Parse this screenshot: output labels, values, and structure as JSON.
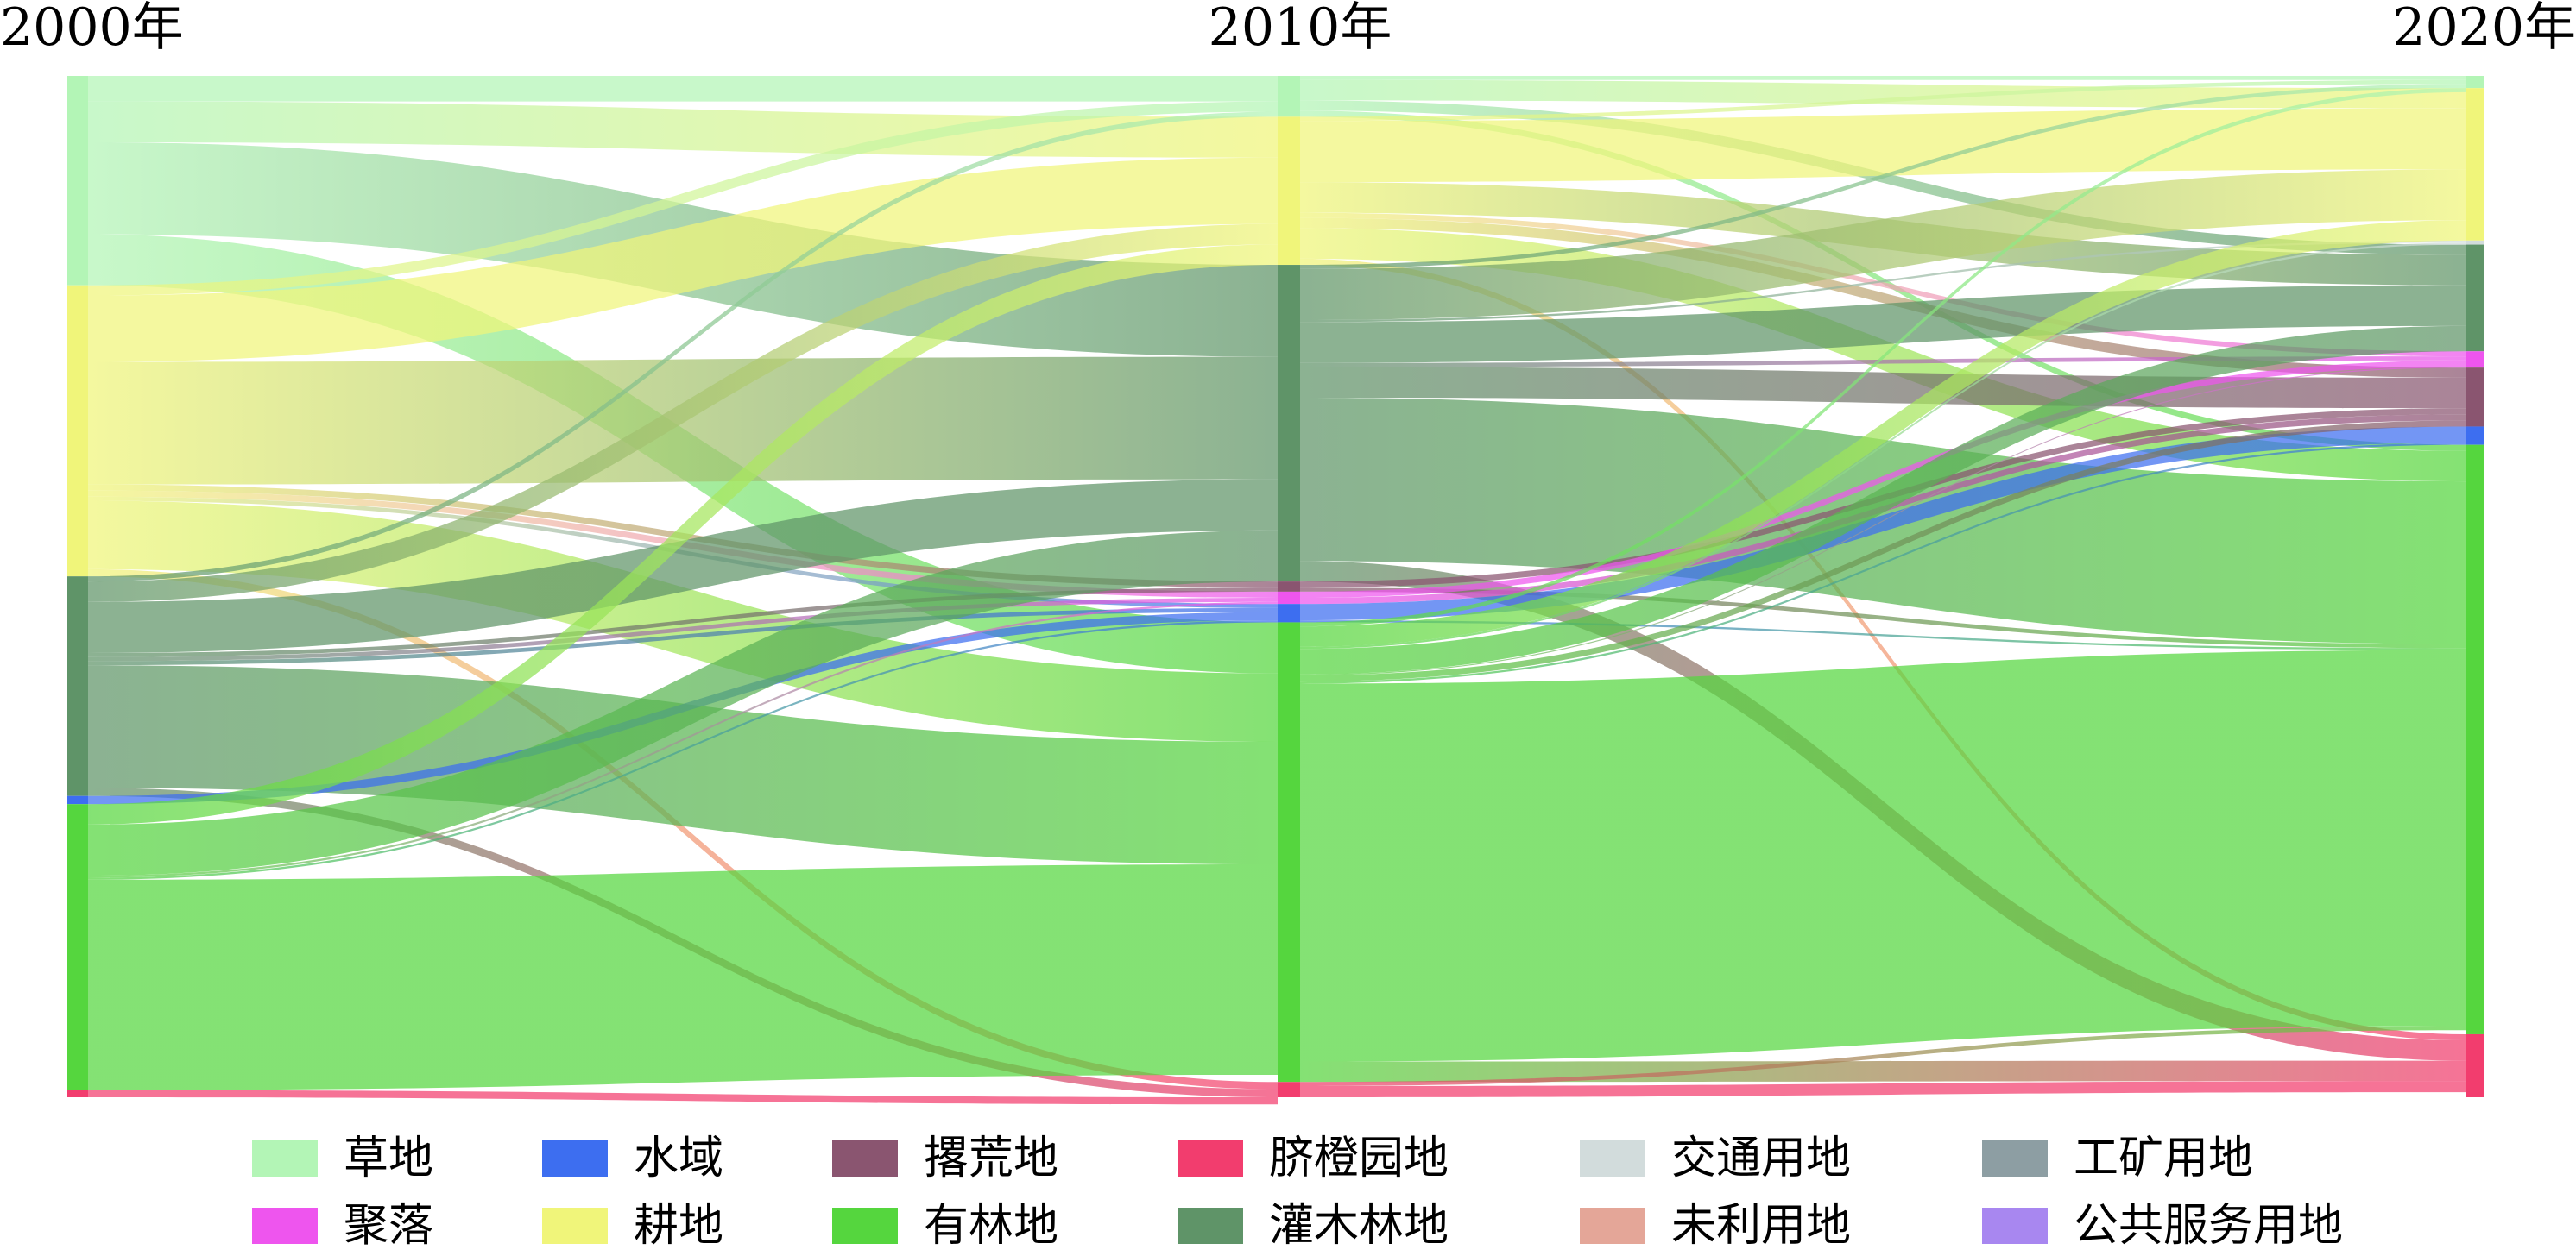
{
  "chart_data": {
    "type": "sankey",
    "years": [
      "2000年",
      "2010年",
      "2020年"
    ],
    "categories": [
      {
        "key": "grass",
        "name": "草地",
        "color": "#b3f5b6"
      },
      {
        "key": "water",
        "name": "水域",
        "color": "#3d6ef0"
      },
      {
        "key": "abandoned",
        "name": "撂荒地",
        "color": "#8a5570"
      },
      {
        "key": "orchard",
        "name": "脐橙园地",
        "color": "#f23d6e"
      },
      {
        "key": "traffic",
        "name": "交通用地",
        "color": "#d2dcdc"
      },
      {
        "key": "mining",
        "name": "工矿用地",
        "color": "#8d9ea3"
      },
      {
        "key": "settlement",
        "name": "聚落",
        "color": "#ee55ee"
      },
      {
        "key": "cropland",
        "name": "耕地",
        "color": "#f0f57a"
      },
      {
        "key": "forest",
        "name": "有林地",
        "color": "#55d63e"
      },
      {
        "key": "shrub",
        "name": "灌木林地",
        "color": "#5f9468"
      },
      {
        "key": "unused",
        "name": "未利用地",
        "color": "#e4a698"
      },
      {
        "key": "public",
        "name": "公共服务用地",
        "color": "#a887f0"
      }
    ],
    "node_shares": {
      "2000年": {
        "grass": 0.205,
        "cropland": 0.285,
        "shrub": 0.215,
        "water": 0.008,
        "forest": 0.28,
        "orchard": 0.007
      },
      "2010年": {
        "grass": 0.04,
        "cropland": 0.145,
        "shrub": 0.31,
        "abandoned": 0.01,
        "settlement": 0.012,
        "water": 0.018,
        "forest": 0.45,
        "orchard": 0.015
      },
      "2020年": {
        "grass": 0.012,
        "cropland": 0.15,
        "traffic": 0.004,
        "shrub": 0.105,
        "settlement": 0.016,
        "abandoned": 0.058,
        "water": 0.018,
        "forest": 0.58,
        "orchard": 0.062
      }
    },
    "flows_2000_2010": [
      {
        "from": "grass",
        "to": "grass",
        "share": 0.025
      },
      {
        "from": "grass",
        "to": "cropland",
        "share": 0.04
      },
      {
        "from": "grass",
        "to": "shrub",
        "share": 0.09
      },
      {
        "from": "grass",
        "to": "forest",
        "share": 0.05
      },
      {
        "from": "cropland",
        "to": "grass",
        "share": 0.01
      },
      {
        "from": "cropland",
        "to": "cropland",
        "share": 0.065
      },
      {
        "from": "cropland",
        "to": "shrub",
        "share": 0.12
      },
      {
        "from": "cropland",
        "to": "abandoned",
        "share": 0.006
      },
      {
        "from": "cropland",
        "to": "settlement",
        "share": 0.006
      },
      {
        "from": "cropland",
        "to": "water",
        "share": 0.004
      },
      {
        "from": "cropland",
        "to": "forest",
        "share": 0.067
      },
      {
        "from": "cropland",
        "to": "orchard",
        "share": 0.007
      },
      {
        "from": "shrub",
        "to": "grass",
        "share": 0.005
      },
      {
        "from": "shrub",
        "to": "cropland",
        "share": 0.02
      },
      {
        "from": "shrub",
        "to": "shrub",
        "share": 0.05
      },
      {
        "from": "shrub",
        "to": "abandoned",
        "share": 0.004
      },
      {
        "from": "shrub",
        "to": "settlement",
        "share": 0.004
      },
      {
        "from": "shrub",
        "to": "water",
        "share": 0.004
      },
      {
        "from": "shrub",
        "to": "forest",
        "share": 0.12
      },
      {
        "from": "shrub",
        "to": "orchard",
        "share": 0.008
      },
      {
        "from": "water",
        "to": "water",
        "share": 0.008
      },
      {
        "from": "forest",
        "to": "cropland",
        "share": 0.02
      },
      {
        "from": "forest",
        "to": "shrub",
        "share": 0.05
      },
      {
        "from": "forest",
        "to": "settlement",
        "share": 0.002
      },
      {
        "from": "forest",
        "to": "water",
        "share": 0.002
      },
      {
        "from": "forest",
        "to": "forest",
        "share": 0.206
      },
      {
        "from": "orchard",
        "to": "orchard",
        "share": 0.007
      }
    ],
    "flows_2010_2020": [
      {
        "from": "grass",
        "to": "grass",
        "share": 0.004
      },
      {
        "from": "grass",
        "to": "cropland",
        "share": 0.02
      },
      {
        "from": "grass",
        "to": "shrub",
        "share": 0.01
      },
      {
        "from": "grass",
        "to": "forest",
        "share": 0.006
      },
      {
        "from": "cropland",
        "to": "grass",
        "share": 0.004
      },
      {
        "from": "cropland",
        "to": "cropland",
        "share": 0.06
      },
      {
        "from": "cropland",
        "to": "shrub",
        "share": 0.03
      },
      {
        "from": "cropland",
        "to": "abandoned",
        "share": 0.01
      },
      {
        "from": "cropland",
        "to": "settlement",
        "share": 0.005
      },
      {
        "from": "cropland",
        "to": "forest",
        "share": 0.03
      },
      {
        "from": "cropland",
        "to": "orchard",
        "share": 0.006
      },
      {
        "from": "shrub",
        "to": "grass",
        "share": 0.004
      },
      {
        "from": "shrub",
        "to": "cropland",
        "share": 0.05
      },
      {
        "from": "shrub",
        "to": "traffic",
        "share": 0.002
      },
      {
        "from": "shrub",
        "to": "shrub",
        "share": 0.04
      },
      {
        "from": "shrub",
        "to": "settlement",
        "share": 0.004
      },
      {
        "from": "shrub",
        "to": "abandoned",
        "share": 0.03
      },
      {
        "from": "shrub",
        "to": "forest",
        "share": 0.16
      },
      {
        "from": "shrub",
        "to": "orchard",
        "share": 0.02
      },
      {
        "from": "abandoned",
        "to": "abandoned",
        "share": 0.006
      },
      {
        "from": "abandoned",
        "to": "forest",
        "share": 0.004
      },
      {
        "from": "settlement",
        "to": "settlement",
        "share": 0.006
      },
      {
        "from": "settlement",
        "to": "abandoned",
        "share": 0.006
      },
      {
        "from": "water",
        "to": "water",
        "share": 0.016
      },
      {
        "from": "water",
        "to": "forest",
        "share": 0.002
      },
      {
        "from": "forest",
        "to": "grass",
        "share": 0.004
      },
      {
        "from": "forest",
        "to": "cropland",
        "share": 0.02
      },
      {
        "from": "forest",
        "to": "traffic",
        "share": 0.002
      },
      {
        "from": "forest",
        "to": "shrub",
        "share": 0.025
      },
      {
        "from": "forest",
        "to": "settlement",
        "share": 0.001
      },
      {
        "from": "forest",
        "to": "abandoned",
        "share": 0.006
      },
      {
        "from": "forest",
        "to": "water",
        "share": 0.002
      },
      {
        "from": "forest",
        "to": "forest",
        "share": 0.37
      },
      {
        "from": "forest",
        "to": "orchard",
        "share": 0.02
      },
      {
        "from": "orchard",
        "to": "forest",
        "share": 0.004
      },
      {
        "from": "orchard",
        "to": "orchard",
        "share": 0.011
      }
    ]
  }
}
